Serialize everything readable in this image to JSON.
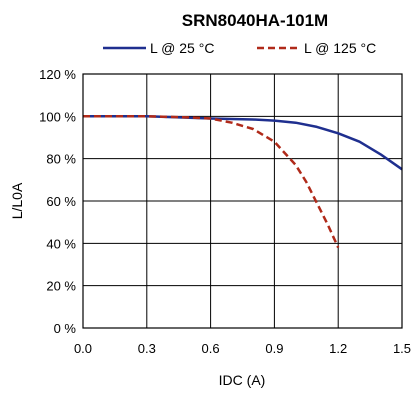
{
  "chart_data": {
    "type": "line",
    "title": "SRN8040HA-101M",
    "xlabel": "IDC (A)",
    "ylabel": "L/L0A",
    "xlim": [
      0,
      1.5
    ],
    "ylim": [
      0,
      120
    ],
    "x_ticks": [
      "0.0",
      "0.3",
      "0.6",
      "0.9",
      "1.2",
      "1.5"
    ],
    "y_ticks": [
      "0 %",
      "20 %",
      "40 %",
      "60 %",
      "80 %",
      "100 %",
      "120 %"
    ],
    "grid": true,
    "legend_position": "top",
    "series": [
      {
        "name": "L @ 25 °C",
        "color": "#1f2f8f",
        "style": "solid",
        "x": [
          0.0,
          0.3,
          0.6,
          0.8,
          0.9,
          1.0,
          1.1,
          1.2,
          1.3,
          1.4,
          1.5
        ],
        "y": [
          100,
          100,
          99,
          98.5,
          98,
          97,
          95,
          92,
          88,
          82,
          75
        ]
      },
      {
        "name": "L @ 125 °C",
        "color": "#b02a1a",
        "style": "dashed",
        "x": [
          0.0,
          0.3,
          0.5,
          0.6,
          0.7,
          0.8,
          0.9,
          1.0,
          1.05,
          1.1,
          1.15,
          1.2
        ],
        "y": [
          100,
          100,
          99.5,
          99,
          97,
          94,
          88,
          77,
          69,
          59,
          49,
          38
        ]
      }
    ]
  }
}
